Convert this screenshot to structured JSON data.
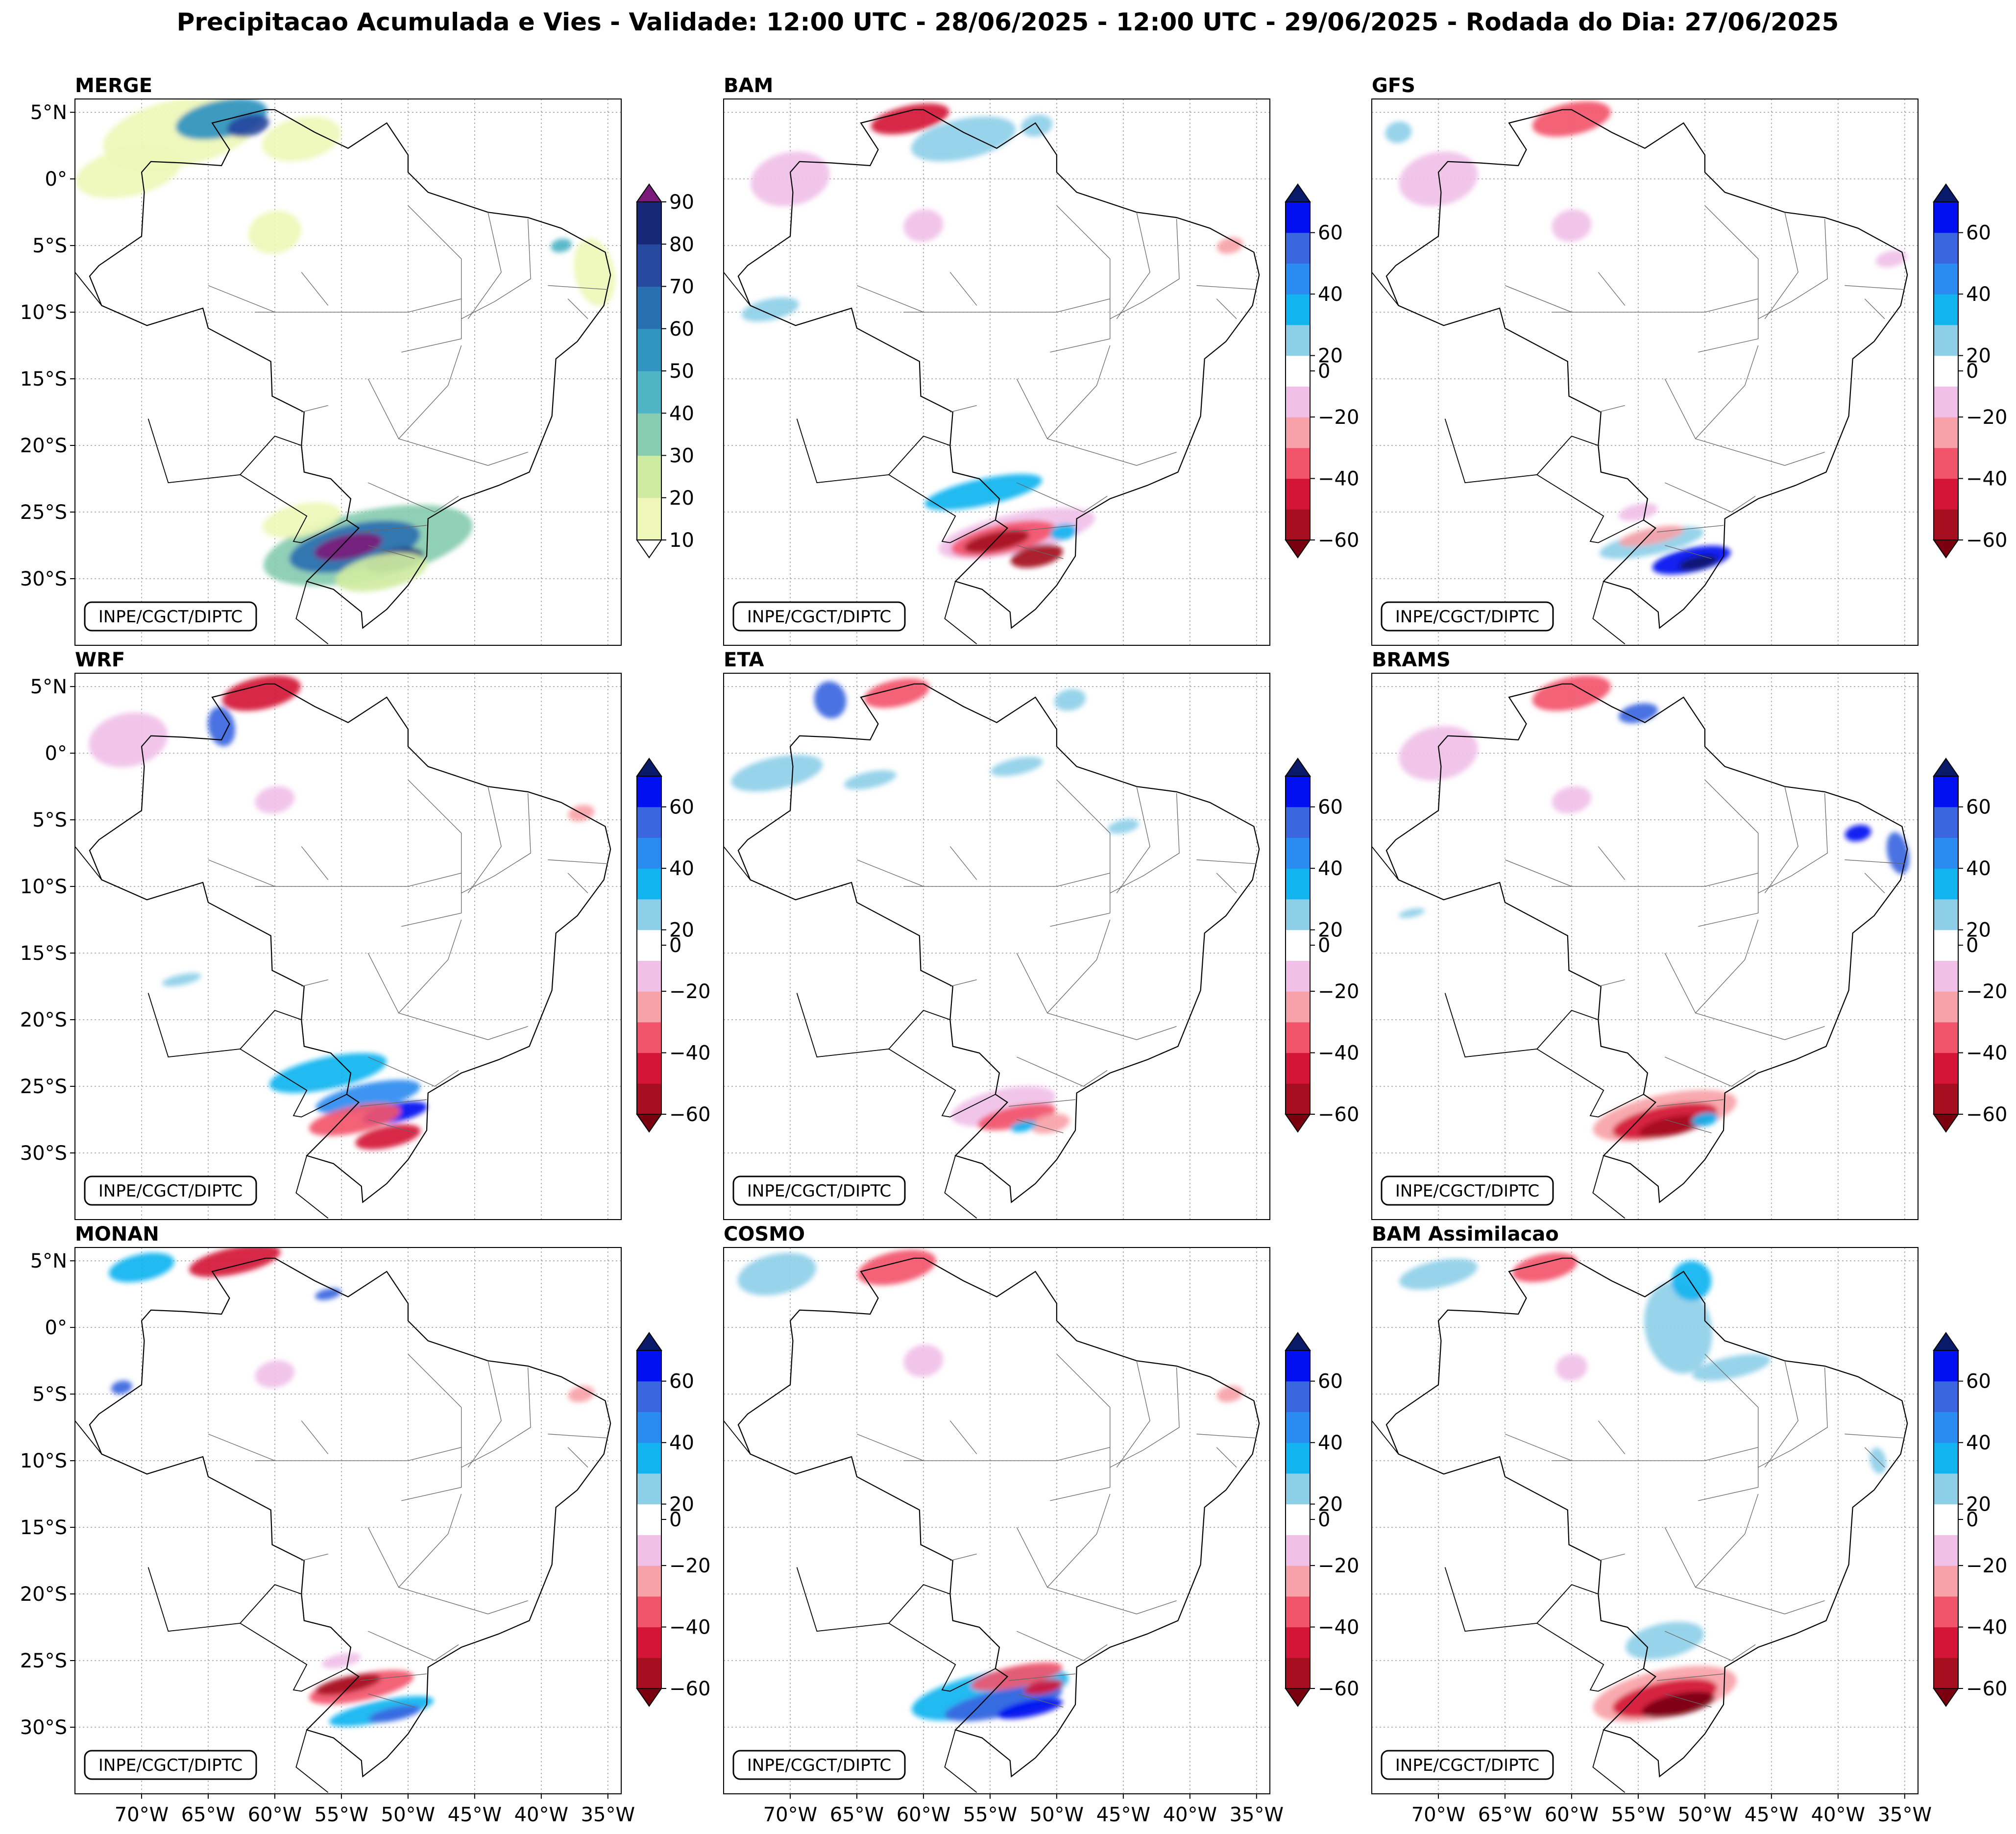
{
  "figure": {
    "title": "Precipitacao Acumulada e Vies - Validade: 12:00 UTC - 28/06/2025 - 12:00 UTC - 29/06/2025 - Rodada do Dia: 27/06/2025",
    "credit": "INPE/CGCT/DIPTC"
  },
  "axes": {
    "lon_range": [
      -75,
      -34
    ],
    "lat_range": [
      -35,
      6
    ],
    "lat_ticks": [
      {
        "value": 5,
        "label": "5°N"
      },
      {
        "value": 0,
        "label": "0°"
      },
      {
        "value": -5,
        "label": "5°S"
      },
      {
        "value": -10,
        "label": "10°S"
      },
      {
        "value": -15,
        "label": "15°S"
      },
      {
        "value": -20,
        "label": "20°S"
      },
      {
        "value": -25,
        "label": "25°S"
      },
      {
        "value": -30,
        "label": "30°S"
      }
    ],
    "lon_ticks": [
      {
        "value": -70,
        "label": "70°W"
      },
      {
        "value": -65,
        "label": "65°W"
      },
      {
        "value": -60,
        "label": "60°W"
      },
      {
        "value": -55,
        "label": "55°W"
      },
      {
        "value": -50,
        "label": "50°W"
      },
      {
        "value": -45,
        "label": "45°W"
      },
      {
        "value": -40,
        "label": "40°W"
      },
      {
        "value": -35,
        "label": "35°W"
      }
    ]
  },
  "colorbars": {
    "precip": {
      "levels": [
        10,
        20,
        30,
        40,
        50,
        60,
        70,
        80,
        90
      ],
      "colors": [
        "#eef7b7",
        "#cfeba1",
        "#87ccb0",
        "#4fb4c4",
        "#2f94c0",
        "#2a6fb0",
        "#26489e",
        "#182878"
      ],
      "over": "#7a1a7a",
      "under": "#ffffff",
      "tick_values": [
        10,
        20,
        30,
        40,
        50,
        60,
        70,
        80,
        90
      ]
    },
    "bias": {
      "levels": [
        -60,
        -50,
        -40,
        -30,
        -20,
        -10,
        10,
        20,
        30,
        40,
        50,
        60
      ],
      "colors": [
        "#a50f20",
        "#d41538",
        "#f2556b",
        "#f7a2a8",
        "#f0c0e8",
        "#ffffff",
        "#8ecfe8",
        "#12b4f0",
        "#2a8cf0",
        "#3a66e0",
        "#0010f0"
      ],
      "over": "#0a1a6a",
      "under": "#7a0010",
      "tick_values": [
        -60,
        -40,
        -20,
        0,
        20,
        40,
        60
      ]
    }
  },
  "chart_data": [
    {
      "type": "heatmap",
      "title": "MERGE",
      "variable": "accumulated precipitation (mm)",
      "colorbar": "precip",
      "blobs": [
        {
          "lon": -53,
          "lat": -27.5,
          "rlon": 8,
          "rlat": 2.6,
          "value": 35
        },
        {
          "lon": -54,
          "lat": -27.6,
          "rlon": 5,
          "rlat": 1.7,
          "value": 65
        },
        {
          "lon": -54.5,
          "lat": -27.6,
          "rlon": 2.6,
          "rlat": 0.9,
          "value": 92
        },
        {
          "lon": -51,
          "lat": -28.6,
          "rlon": 2.2,
          "rlat": 0.8,
          "value": 85
        },
        {
          "lon": -52,
          "lat": -29.5,
          "rlon": 3.5,
          "rlat": 1.3,
          "value": 25
        },
        {
          "lon": -58,
          "lat": -25.6,
          "rlon": 3,
          "rlat": 1.2,
          "value": 15
        },
        {
          "lon": -67,
          "lat": 3.5,
          "rlon": 6,
          "rlat": 2.5,
          "value": 15
        },
        {
          "lon": -64,
          "lat": 4.5,
          "rlon": 3.5,
          "rlat": 1.4,
          "value": 50
        },
        {
          "lon": -62,
          "lat": 4,
          "rlon": 1.6,
          "rlat": 0.8,
          "value": 72
        },
        {
          "lon": -58,
          "lat": 3,
          "rlon": 3,
          "rlat": 1.6,
          "value": 15
        },
        {
          "lon": -71,
          "lat": 0.5,
          "rlon": 4,
          "rlat": 1.8,
          "value": 12
        },
        {
          "lon": -60,
          "lat": -4,
          "rlon": 2,
          "rlat": 1.6,
          "value": 18
        },
        {
          "lon": -36,
          "lat": -7,
          "rlon": 1.5,
          "rlat": 2.6,
          "value": 14
        },
        {
          "lon": -38.5,
          "lat": -5,
          "rlon": 0.8,
          "rlat": 0.5,
          "value": 40
        }
      ]
    },
    {
      "type": "heatmap",
      "title": "BAM",
      "variable": "bias (mm)",
      "colorbar": "bias",
      "blobs": [
        {
          "lon": -55.5,
          "lat": -23.5,
          "rlon": 4.5,
          "rlat": 1,
          "value": 22
        },
        {
          "lon": -53,
          "lat": -26.6,
          "rlon": 6,
          "rlat": 1.5,
          "value": -20
        },
        {
          "lon": -54,
          "lat": -27,
          "rlon": 4,
          "rlat": 1.1,
          "value": -38
        },
        {
          "lon": -54.5,
          "lat": -27.2,
          "rlon": 2.5,
          "rlat": 0.7,
          "value": -58
        },
        {
          "lon": -51.5,
          "lat": -28.3,
          "rlon": 2,
          "rlat": 0.8,
          "value": -55
        },
        {
          "lon": -49.5,
          "lat": -26.5,
          "rlon": 1,
          "rlat": 0.6,
          "value": 24
        },
        {
          "lon": -61,
          "lat": 4.5,
          "rlon": 3,
          "rlat": 1,
          "value": -45
        },
        {
          "lon": -57,
          "lat": 3,
          "rlon": 4,
          "rlat": 1.5,
          "value": 15
        },
        {
          "lon": -51.5,
          "lat": 4,
          "rlon": 1.2,
          "rlat": 0.8,
          "value": 18
        },
        {
          "lon": -71.5,
          "lat": -9.8,
          "rlon": 2.2,
          "rlat": 0.8,
          "value": 15
        },
        {
          "lon": -60,
          "lat": -3.5,
          "rlon": 1.5,
          "rlat": 1.2,
          "value": -15
        },
        {
          "lon": -70,
          "lat": 0,
          "rlon": 3,
          "rlat": 2,
          "value": -15
        },
        {
          "lon": -37,
          "lat": -5,
          "rlon": 1,
          "rlat": 0.6,
          "value": -25
        }
      ]
    },
    {
      "type": "heatmap",
      "title": "GFS",
      "variable": "bias (mm)",
      "colorbar": "bias",
      "blobs": [
        {
          "lon": -54,
          "lat": -27.3,
          "rlon": 4,
          "rlat": 0.9,
          "value": 18
        },
        {
          "lon": -51,
          "lat": -28.6,
          "rlon": 3,
          "rlat": 0.9,
          "value": 50
        },
        {
          "lon": -50.5,
          "lat": -28.8,
          "rlon": 1.5,
          "rlat": 0.5,
          "value": 62
        },
        {
          "lon": -54,
          "lat": -26.8,
          "rlon": 2.5,
          "rlat": 0.6,
          "value": -28
        },
        {
          "lon": -55,
          "lat": -25,
          "rlon": 1.5,
          "rlat": 0.6,
          "value": -15
        },
        {
          "lon": -60,
          "lat": 4.5,
          "rlon": 3,
          "rlat": 1.2,
          "value": -40
        },
        {
          "lon": -70,
          "lat": 0,
          "rlon": 3,
          "rlat": 2,
          "value": -15
        },
        {
          "lon": -60,
          "lat": -3.5,
          "rlon": 1.5,
          "rlat": 1.2,
          "value": -15
        },
        {
          "lon": -73,
          "lat": 3.5,
          "rlon": 1,
          "rlat": 0.8,
          "value": 15
        },
        {
          "lon": -36,
          "lat": -6,
          "rlon": 1.2,
          "rlat": 0.6,
          "value": -15
        }
      ]
    },
    {
      "type": "heatmap",
      "title": "WRF",
      "variable": "bias (mm)",
      "colorbar": "bias",
      "blobs": [
        {
          "lon": -56,
          "lat": -24,
          "rlon": 4.5,
          "rlat": 1.2,
          "value": 24
        },
        {
          "lon": -53,
          "lat": -25.8,
          "rlon": 4,
          "rlat": 1,
          "value": 35
        },
        {
          "lon": -51,
          "lat": -27,
          "rlon": 2.5,
          "rlat": 0.7,
          "value": 55
        },
        {
          "lon": -54,
          "lat": -27.5,
          "rlon": 3.5,
          "rlat": 1,
          "value": -35
        },
        {
          "lon": -51.5,
          "lat": -28.8,
          "rlon": 2.5,
          "rlat": 0.8,
          "value": -45
        },
        {
          "lon": -61,
          "lat": 4.5,
          "rlon": 3,
          "rlat": 1.2,
          "value": -45
        },
        {
          "lon": -64,
          "lat": 2,
          "rlon": 1,
          "rlat": 1.5,
          "value": 40
        },
        {
          "lon": -71,
          "lat": 1,
          "rlon": 3,
          "rlat": 2,
          "value": -15
        },
        {
          "lon": -67,
          "lat": -17,
          "rlon": 1.5,
          "rlat": 0.4,
          "value": 18
        },
        {
          "lon": -60,
          "lat": -3.5,
          "rlon": 1.5,
          "rlat": 1,
          "value": -15
        },
        {
          "lon": -37,
          "lat": -4.5,
          "rlon": 1,
          "rlat": 0.6,
          "value": -25
        }
      ]
    },
    {
      "type": "heatmap",
      "title": "ETA",
      "variable": "bias (mm)",
      "colorbar": "bias",
      "blobs": [
        {
          "lon": -54,
          "lat": -26.5,
          "rlon": 4,
          "rlat": 1.3,
          "value": -15
        },
        {
          "lon": -53,
          "lat": -27.3,
          "rlon": 3,
          "rlat": 0.8,
          "value": -38
        },
        {
          "lon": -50.5,
          "lat": -27.8,
          "rlon": 1.5,
          "rlat": 0.7,
          "value": -25
        },
        {
          "lon": -52.5,
          "lat": -28,
          "rlon": 1,
          "rlat": 0.4,
          "value": 25
        },
        {
          "lon": -67,
          "lat": 4,
          "rlon": 1.2,
          "rlat": 1.4,
          "value": 40
        },
        {
          "lon": -64,
          "lat": -2,
          "rlon": 2,
          "rlat": 0.6,
          "value": 15
        },
        {
          "lon": -53,
          "lat": -1,
          "rlon": 2,
          "rlat": 0.6,
          "value": 15
        },
        {
          "lon": -45,
          "lat": -5.5,
          "rlon": 1.2,
          "rlat": 0.5,
          "value": 18
        },
        {
          "lon": -62,
          "lat": 4.5,
          "rlon": 2.5,
          "rlat": 1,
          "value": -35
        },
        {
          "lon": -71,
          "lat": -1.5,
          "rlon": 3.5,
          "rlat": 1.2,
          "value": 15
        },
        {
          "lon": -49,
          "lat": 4,
          "rlon": 1.2,
          "rlat": 0.8,
          "value": 18
        }
      ]
    },
    {
      "type": "heatmap",
      "title": "BRAMS",
      "variable": "bias (mm)",
      "colorbar": "bias",
      "blobs": [
        {
          "lon": -53,
          "lat": -27.2,
          "rlon": 5.5,
          "rlat": 1.6,
          "value": -22
        },
        {
          "lon": -53,
          "lat": -27.6,
          "rlon": 4,
          "rlat": 1.1,
          "value": -42
        },
        {
          "lon": -52.5,
          "lat": -28,
          "rlon": 2.5,
          "rlat": 0.7,
          "value": -60
        },
        {
          "lon": -50,
          "lat": -27.5,
          "rlon": 1,
          "rlat": 0.5,
          "value": 25
        },
        {
          "lon": -60,
          "lat": 4.5,
          "rlon": 3,
          "rlat": 1.2,
          "value": -40
        },
        {
          "lon": -55,
          "lat": 3,
          "rlon": 1.5,
          "rlat": 0.7,
          "value": 45
        },
        {
          "lon": -38.5,
          "lat": -6,
          "rlon": 1,
          "rlat": 0.6,
          "value": 55
        },
        {
          "lon": -35.5,
          "lat": -7.5,
          "rlon": 0.8,
          "rlat": 1.6,
          "value": 40
        },
        {
          "lon": -70,
          "lat": 0,
          "rlon": 3,
          "rlat": 2,
          "value": -15
        },
        {
          "lon": -60,
          "lat": -3.5,
          "rlon": 1.5,
          "rlat": 1,
          "value": -15
        },
        {
          "lon": -72,
          "lat": -12,
          "rlon": 1,
          "rlat": 0.3,
          "value": 15
        }
      ]
    },
    {
      "type": "heatmap",
      "title": "MONAN",
      "variable": "bias (mm)",
      "colorbar": "bias",
      "blobs": [
        {
          "lon": -53.5,
          "lat": -27,
          "rlon": 4,
          "rlat": 1,
          "value": -35
        },
        {
          "lon": -54.5,
          "lat": -26.8,
          "rlon": 2.5,
          "rlat": 0.6,
          "value": -55
        },
        {
          "lon": -52,
          "lat": -28.8,
          "rlon": 4,
          "rlat": 0.8,
          "value": 28
        },
        {
          "lon": -51,
          "lat": -29,
          "rlon": 2,
          "rlat": 0.5,
          "value": 42
        },
        {
          "lon": -55,
          "lat": -25,
          "rlon": 1.5,
          "rlat": 0.5,
          "value": -15
        },
        {
          "lon": -63,
          "lat": 5,
          "rlon": 3.5,
          "rlat": 1,
          "value": -45
        },
        {
          "lon": -70,
          "lat": 4.5,
          "rlon": 2.5,
          "rlat": 1,
          "value": 20
        },
        {
          "lon": -71.5,
          "lat": -4.5,
          "rlon": 0.8,
          "rlat": 0.5,
          "value": 40
        },
        {
          "lon": -56,
          "lat": 2.5,
          "rlon": 1,
          "rlat": 0.4,
          "value": 40
        },
        {
          "lon": -60,
          "lat": -3.5,
          "rlon": 1.5,
          "rlat": 1,
          "value": -18
        },
        {
          "lon": -37,
          "lat": -5,
          "rlon": 1,
          "rlat": 0.6,
          "value": -25
        }
      ]
    },
    {
      "type": "heatmap",
      "title": "COSMO",
      "variable": "bias (mm)",
      "colorbar": "bias",
      "blobs": [
        {
          "lon": -55,
          "lat": -27.5,
          "rlon": 6,
          "rlat": 1.6,
          "value": 20
        },
        {
          "lon": -54,
          "lat": -28.2,
          "rlon": 4.5,
          "rlat": 1,
          "value": 40
        },
        {
          "lon": -52,
          "lat": -28.6,
          "rlon": 2.5,
          "rlat": 0.6,
          "value": 58
        },
        {
          "lon": -53,
          "lat": -26.2,
          "rlon": 3.5,
          "rlat": 0.8,
          "value": -35
        },
        {
          "lon": -51,
          "lat": -27,
          "rlon": 1.5,
          "rlat": 0.5,
          "value": -45
        },
        {
          "lon": -62,
          "lat": 4.5,
          "rlon": 3,
          "rlat": 1.2,
          "value": -35
        },
        {
          "lon": -71,
          "lat": 4,
          "rlon": 3,
          "rlat": 1.5,
          "value": 15
        },
        {
          "lon": -60,
          "lat": -2.5,
          "rlon": 1.5,
          "rlat": 1.2,
          "value": -18
        },
        {
          "lon": -37,
          "lat": -5,
          "rlon": 1,
          "rlat": 0.6,
          "value": -25
        }
      ]
    },
    {
      "type": "heatmap",
      "title": "BAM Assimilacao",
      "variable": "bias (mm)",
      "colorbar": "bias",
      "blobs": [
        {
          "lon": -53,
          "lat": -27.5,
          "rlon": 5.5,
          "rlat": 1.8,
          "value": -25
        },
        {
          "lon": -53,
          "lat": -27.8,
          "rlon": 4,
          "rlat": 1.2,
          "value": -45
        },
        {
          "lon": -52,
          "lat": -28.3,
          "rlon": 2.8,
          "rlat": 0.8,
          "value": -62
        },
        {
          "lon": -53,
          "lat": -23.5,
          "rlon": 3,
          "rlat": 1.3,
          "value": 15
        },
        {
          "lon": -52,
          "lat": 0,
          "rlon": 2.5,
          "rlat": 3.5,
          "value": 15
        },
        {
          "lon": -51,
          "lat": 3.5,
          "rlon": 1.5,
          "rlat": 1.5,
          "value": 28
        },
        {
          "lon": -48,
          "lat": -3,
          "rlon": 3,
          "rlat": 0.8,
          "value": 15
        },
        {
          "lon": -70,
          "lat": 4,
          "rlon": 3,
          "rlat": 1,
          "value": 15
        },
        {
          "lon": -62,
          "lat": 4.5,
          "rlon": 2.5,
          "rlat": 1,
          "value": -40
        },
        {
          "lon": -37,
          "lat": -10,
          "rlon": 0.6,
          "rlat": 1,
          "value": 15
        },
        {
          "lon": -60,
          "lat": -3,
          "rlon": 1.2,
          "rlat": 1,
          "value": -15
        }
      ]
    }
  ]
}
